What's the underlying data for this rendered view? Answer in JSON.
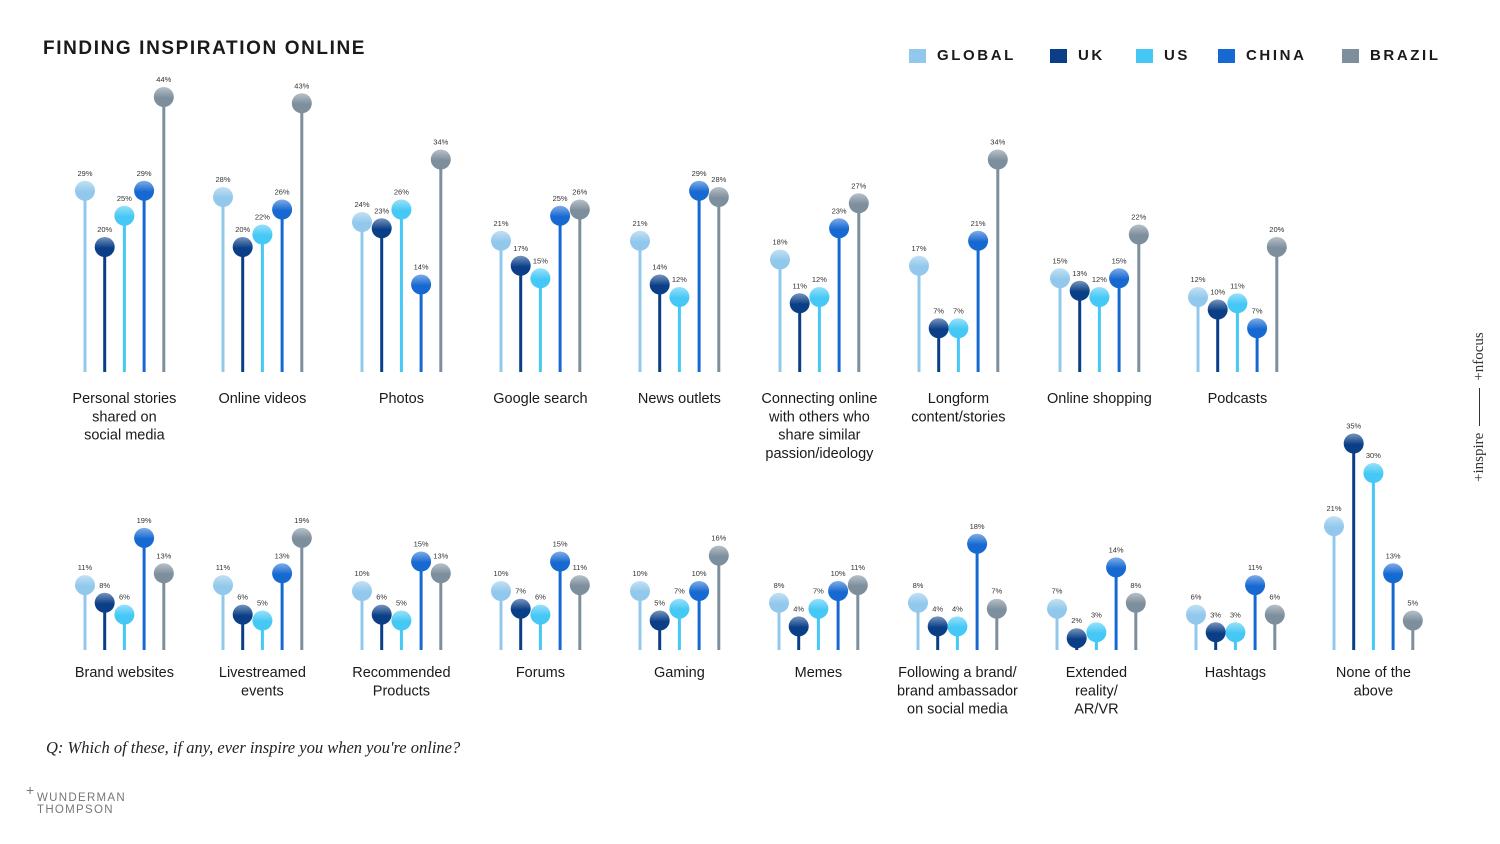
{
  "header": {
    "title": "FINDING INSPIRATION ONLINE"
  },
  "legend": [
    {
      "name": "GLOBAL",
      "color": "#92c8ec"
    },
    {
      "name": "UK",
      "color": "#0a3f88"
    },
    {
      "name": "US",
      "color": "#45c8f5"
    },
    {
      "name": "CHINA",
      "color": "#1769d2"
    },
    {
      "name": "BRAZIL",
      "color": "#7d8e9c"
    }
  ],
  "footer": {
    "question": "Q: Which of these, if any, ever inspire you when you're online?",
    "brand_line1": "WUNDERMAN",
    "brand_line2": "THOMPSON",
    "brand_plus": "+"
  },
  "side_brand": {
    "left": "+inspire",
    "right": "+nfocus"
  },
  "chart_data": [
    {
      "type": "bar",
      "title": "",
      "series_names": [
        "GLOBAL",
        "UK",
        "US",
        "CHINA",
        "BRAZIL"
      ],
      "categories": [
        {
          "label": [
            "Personal stories",
            "shared on",
            "social media"
          ],
          "values": [
            29,
            20,
            25,
            29,
            44
          ]
        },
        {
          "label": [
            "Online videos"
          ],
          "values": [
            28,
            20,
            22,
            26,
            43
          ]
        },
        {
          "label": [
            "Photos"
          ],
          "values": [
            24,
            23,
            26,
            14,
            34
          ]
        },
        {
          "label": [
            "Google search"
          ],
          "values": [
            21,
            17,
            15,
            25,
            26
          ]
        },
        {
          "label": [
            "News outlets"
          ],
          "values": [
            21,
            14,
            12,
            29,
            28
          ]
        },
        {
          "label": [
            "Connecting online",
            "with others who",
            "share similar",
            "passion/ideology"
          ],
          "values": [
            18,
            11,
            12,
            23,
            27
          ]
        },
        {
          "label": [
            "Longform",
            "content/stories"
          ],
          "values": [
            17,
            7,
            7,
            21,
            34
          ]
        },
        {
          "label": [
            "Online shopping"
          ],
          "values": [
            15,
            13,
            12,
            15,
            22
          ]
        },
        {
          "label": [
            "Podcasts"
          ],
          "values": [
            12,
            10,
            11,
            7,
            20
          ]
        }
      ],
      "unit": "%"
    },
    {
      "type": "bar",
      "title": "",
      "series_names": [
        "GLOBAL",
        "UK",
        "US",
        "CHINA",
        "BRAZIL"
      ],
      "categories": [
        {
          "label": [
            "Brand websites"
          ],
          "values": [
            11,
            8,
            6,
            19,
            13
          ]
        },
        {
          "label": [
            "Livestreamed",
            "events"
          ],
          "values": [
            11,
            6,
            5,
            13,
            19
          ]
        },
        {
          "label": [
            "Recommended",
            "Products"
          ],
          "values": [
            10,
            6,
            5,
            15,
            13
          ]
        },
        {
          "label": [
            "Forums"
          ],
          "values": [
            10,
            7,
            6,
            15,
            11
          ]
        },
        {
          "label": [
            "Gaming"
          ],
          "values": [
            10,
            5,
            7,
            10,
            16
          ]
        },
        {
          "label": [
            "Memes"
          ],
          "values": [
            8,
            4,
            7,
            10,
            11
          ]
        },
        {
          "label": [
            "Following a brand/",
            "brand ambassador",
            "on social media"
          ],
          "values": [
            8,
            4,
            4,
            18,
            7
          ]
        },
        {
          "label": [
            "Extended",
            "reality/",
            "AR/VR"
          ],
          "values": [
            7,
            2,
            3,
            14,
            8
          ]
        },
        {
          "label": [
            "Hashtags"
          ],
          "values": [
            6,
            3,
            3,
            11,
            6
          ]
        },
        {
          "label": [
            "None of the",
            "above"
          ],
          "values": [
            21,
            35,
            30,
            13,
            5
          ]
        }
      ],
      "unit": "%"
    }
  ]
}
